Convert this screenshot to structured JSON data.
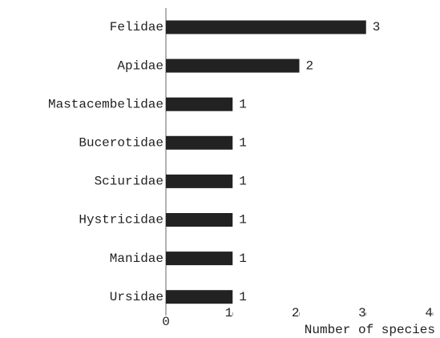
{
  "chart_data": {
    "type": "hbar",
    "x_label": "Number of species",
    "categories": [
      "Felidae",
      "Apidae",
      "Mastacembelidae",
      "Bucerotidae",
      "Sciuridae",
      "Hystricidae",
      "Manidae",
      "Ursidae"
    ],
    "values": [
      3,
      2,
      1,
      1,
      1,
      1,
      1,
      1
    ],
    "color": "#222222",
    "xlim": [
      0,
      4
    ],
    "xticks": [
      0,
      1,
      2,
      3,
      4
    ]
  }
}
